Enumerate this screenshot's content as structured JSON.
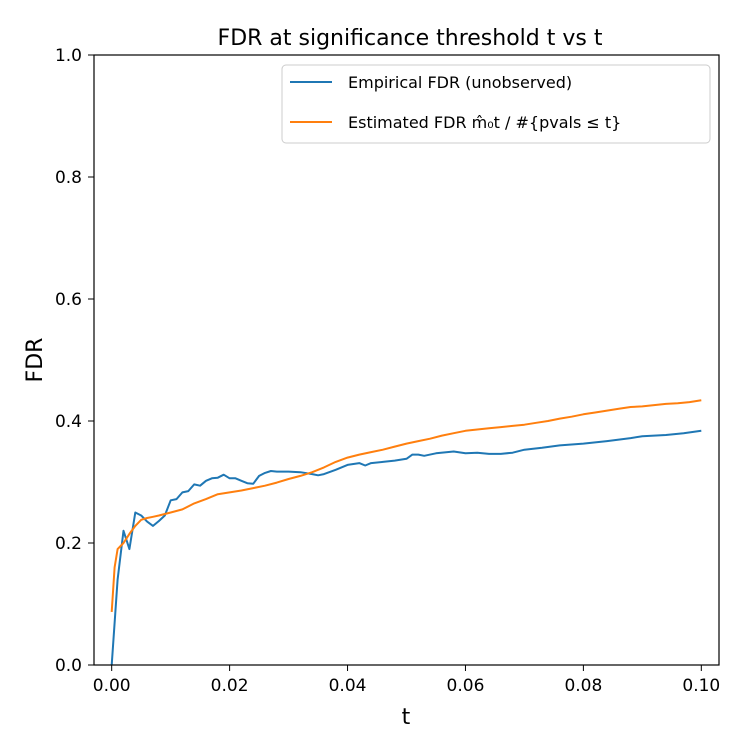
{
  "chart_data": {
    "type": "line",
    "title": "FDR at significance threshold t vs t",
    "xlabel": "t",
    "ylabel": "FDR",
    "xlim": [
      -0.003,
      0.103
    ],
    "ylim": [
      0.0,
      1.0
    ],
    "xticks": [
      "0.00",
      "0.02",
      "0.04",
      "0.06",
      "0.08",
      "0.10"
    ],
    "yticks": [
      "0.0",
      "0.2",
      "0.4",
      "0.6",
      "0.8",
      "1.0"
    ],
    "grid": false,
    "legend_position": "top-right",
    "series": [
      {
        "name": "Empirical FDR (unobserved)",
        "color": "#1f77b4",
        "x": [
          0.0,
          0.001,
          0.002,
          0.003,
          0.004,
          0.005,
          0.006,
          0.007,
          0.008,
          0.009,
          0.01,
          0.011,
          0.012,
          0.013,
          0.014,
          0.015,
          0.016,
          0.017,
          0.018,
          0.019,
          0.02,
          0.021,
          0.022,
          0.023,
          0.024,
          0.025,
          0.026,
          0.027,
          0.028,
          0.03,
          0.032,
          0.034,
          0.035,
          0.036,
          0.038,
          0.04,
          0.042,
          0.043,
          0.044,
          0.046,
          0.048,
          0.05,
          0.051,
          0.052,
          0.053,
          0.055,
          0.058,
          0.06,
          0.062,
          0.064,
          0.066,
          0.068,
          0.07,
          0.073,
          0.076,
          0.08,
          0.084,
          0.088,
          0.09,
          0.094,
          0.097,
          0.1
        ],
        "y": [
          0.0,
          0.14,
          0.22,
          0.19,
          0.25,
          0.245,
          0.235,
          0.228,
          0.236,
          0.245,
          0.27,
          0.272,
          0.283,
          0.285,
          0.296,
          0.294,
          0.302,
          0.306,
          0.307,
          0.312,
          0.306,
          0.306,
          0.302,
          0.298,
          0.297,
          0.31,
          0.315,
          0.318,
          0.317,
          0.317,
          0.316,
          0.313,
          0.311,
          0.313,
          0.32,
          0.328,
          0.331,
          0.327,
          0.331,
          0.333,
          0.335,
          0.338,
          0.345,
          0.345,
          0.343,
          0.347,
          0.35,
          0.347,
          0.348,
          0.346,
          0.346,
          0.348,
          0.353,
          0.356,
          0.36,
          0.363,
          0.367,
          0.372,
          0.375,
          0.377,
          0.38,
          0.384
        ]
      },
      {
        "name": "Estimated FDR m̂₀t / #{pvals ≤ t}",
        "color": "#ff7f0e",
        "x": [
          0.0,
          0.0005,
          0.001,
          0.002,
          0.003,
          0.004,
          0.005,
          0.006,
          0.007,
          0.008,
          0.01,
          0.012,
          0.014,
          0.016,
          0.018,
          0.02,
          0.022,
          0.024,
          0.026,
          0.028,
          0.03,
          0.032,
          0.034,
          0.036,
          0.038,
          0.04,
          0.042,
          0.044,
          0.046,
          0.048,
          0.05,
          0.052,
          0.054,
          0.056,
          0.058,
          0.06,
          0.062,
          0.064,
          0.066,
          0.068,
          0.07,
          0.072,
          0.074,
          0.076,
          0.078,
          0.08,
          0.082,
          0.084,
          0.086,
          0.088,
          0.09,
          0.092,
          0.094,
          0.096,
          0.098,
          0.1
        ],
        "y": [
          0.087,
          0.16,
          0.19,
          0.2,
          0.215,
          0.228,
          0.238,
          0.241,
          0.243,
          0.245,
          0.25,
          0.255,
          0.265,
          0.272,
          0.28,
          0.283,
          0.286,
          0.29,
          0.294,
          0.299,
          0.305,
          0.31,
          0.316,
          0.324,
          0.333,
          0.34,
          0.345,
          0.349,
          0.353,
          0.358,
          0.363,
          0.367,
          0.371,
          0.376,
          0.38,
          0.384,
          0.386,
          0.388,
          0.39,
          0.392,
          0.394,
          0.397,
          0.4,
          0.404,
          0.407,
          0.411,
          0.414,
          0.417,
          0.42,
          0.423,
          0.424,
          0.426,
          0.428,
          0.429,
          0.431,
          0.434
        ]
      }
    ]
  }
}
